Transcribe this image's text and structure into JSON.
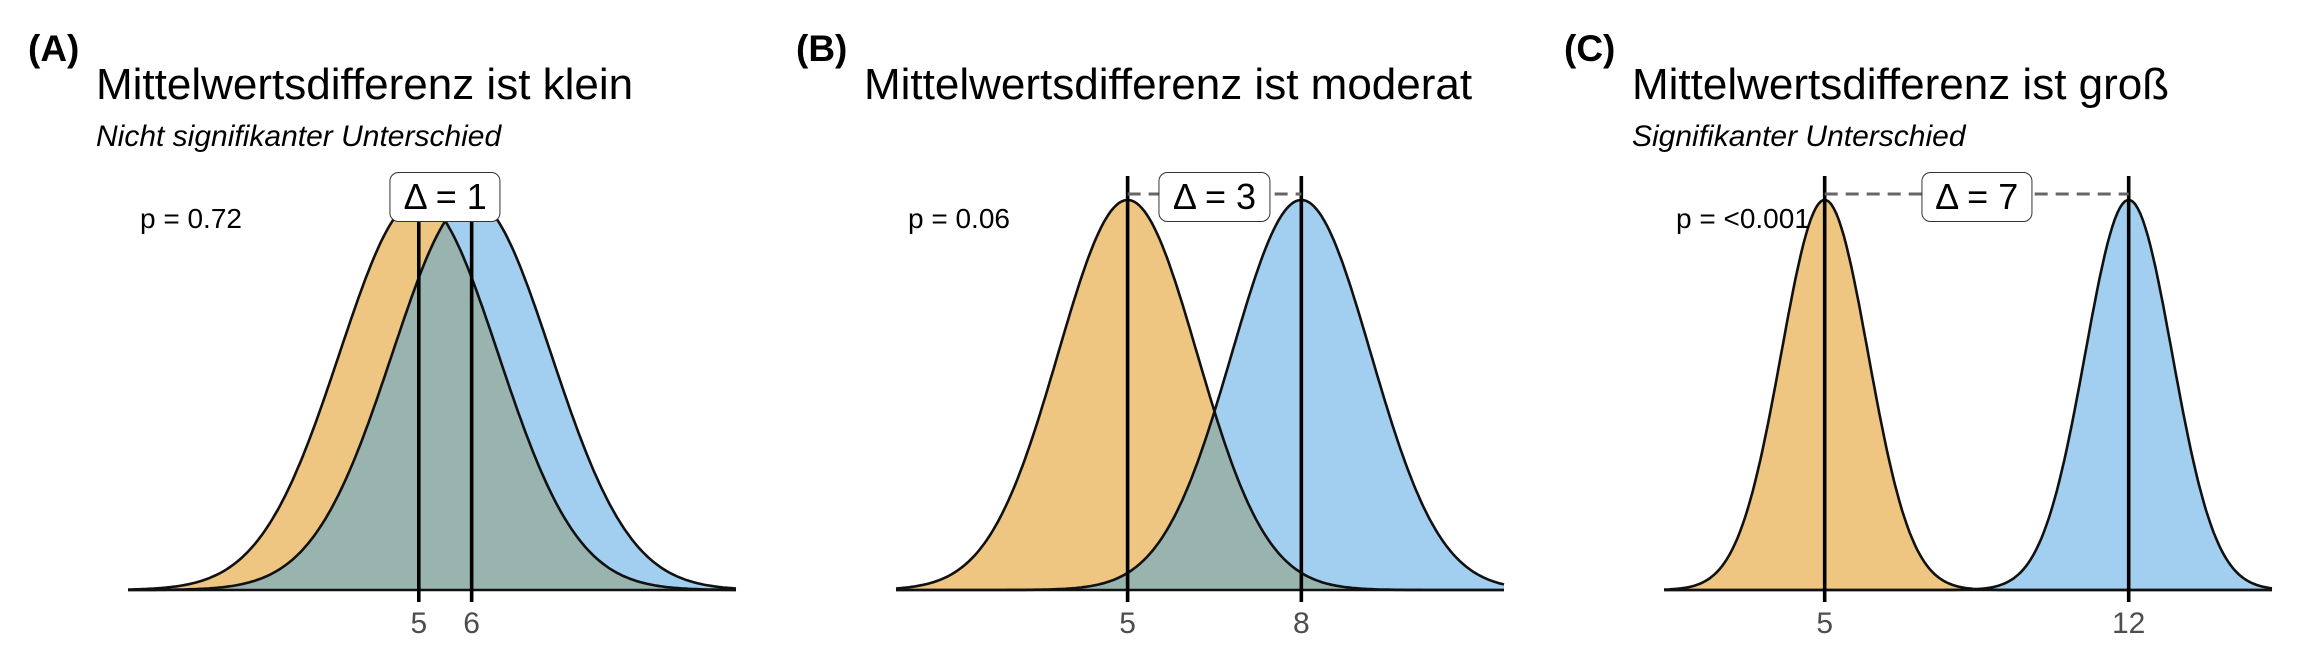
{
  "chart_data": [
    {
      "type": "area",
      "tag": "(A)",
      "title": "Mittelwertsdifferenz ist klein",
      "subtitle": "Nicht signifikanter Unterschied",
      "p_label": "p = 0.72",
      "delta_label": "Δ = 1",
      "mean_lines": true,
      "delta_dashed": false,
      "x_ticks": [
        5,
        6
      ],
      "xlim": [
        -0.5,
        11
      ],
      "series": [
        {
          "mean": 5,
          "sd": 1.5,
          "color": "#E69F00",
          "fill": "#EEC682"
        },
        {
          "mean": 6,
          "sd": 1.5,
          "color": "#56B4E9",
          "fill": "#A2CFF0"
        }
      ],
      "overlap_fill": "#99B4AF"
    },
    {
      "type": "area",
      "tag": "(B)",
      "title": "Mittelwertsdifferenz ist moderat",
      "subtitle": "",
      "p_label": "p = 0.06",
      "delta_label": "Δ = 3",
      "mean_lines": true,
      "delta_dashed": true,
      "x_ticks": [
        5,
        8
      ],
      "xlim": [
        1,
        11.5
      ],
      "series": [
        {
          "mean": 5,
          "sd": 1.2,
          "color": "#E69F00",
          "fill": "#EEC682"
        },
        {
          "mean": 8,
          "sd": 1.2,
          "color": "#56B4E9",
          "fill": "#A2CFF0"
        }
      ],
      "overlap_fill": "#99B4AF"
    },
    {
      "type": "area",
      "tag": "(C)",
      "title": "Mittelwertsdifferenz ist groß",
      "subtitle": "Signifikanter Unterschied",
      "p_label": "p = <0.001",
      "delta_label": "Δ = 7",
      "mean_lines": true,
      "delta_dashed": true,
      "x_ticks": [
        5,
        12
      ],
      "xlim": [
        1.3,
        15.3
      ],
      "series": [
        {
          "mean": 5,
          "sd": 1.0,
          "color": "#E69F00",
          "fill": "#EEC682"
        },
        {
          "mean": 12,
          "sd": 1.0,
          "color": "#56B4E9",
          "fill": "#A2CFF0"
        }
      ],
      "overlap_fill": "#99B4AF"
    }
  ]
}
